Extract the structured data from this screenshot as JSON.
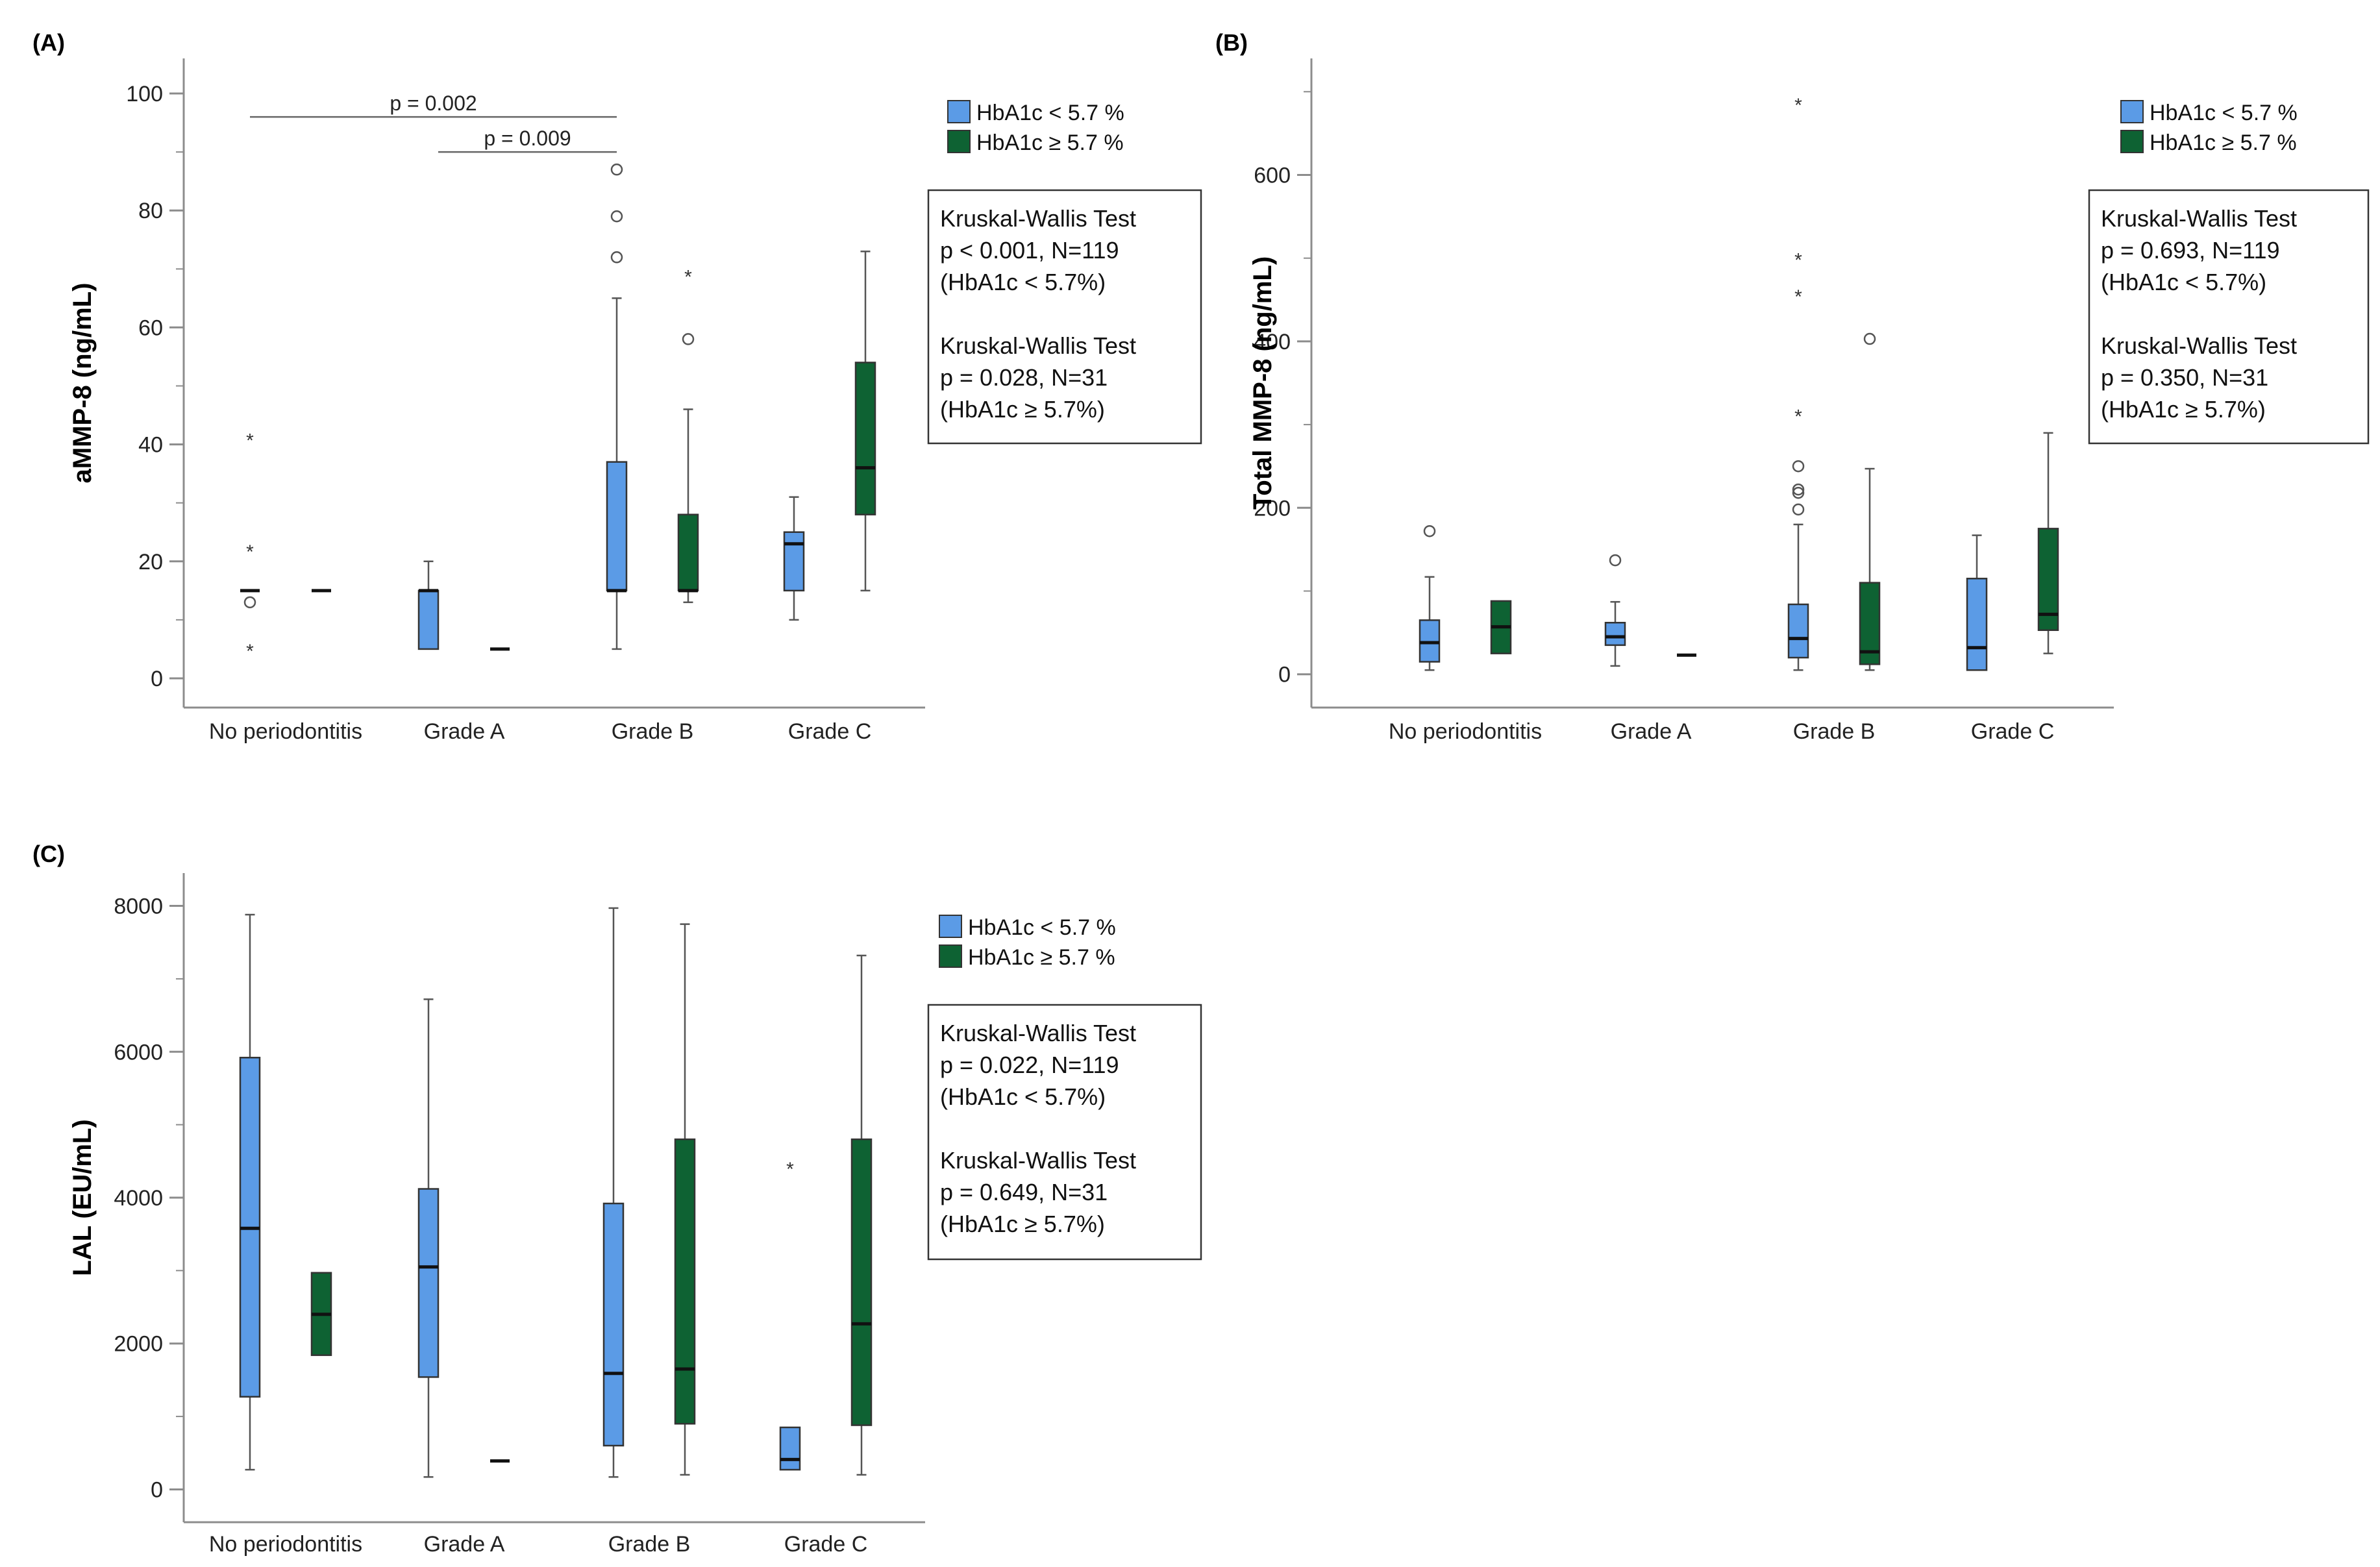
{
  "figure": {
    "background": "#ffffff",
    "axis_color": "#8c8c8c"
  },
  "legend_common": {
    "entries": [
      "HbA1c < 5.7 %",
      "HbA1c ≥ 5.7 %"
    ],
    "colors": [
      "#5b9be6",
      "#0e6233"
    ]
  },
  "chart_data": [
    {
      "panel": "A",
      "panel_label": "(A)",
      "type": "box",
      "ylabel": "aMMP-8 (ng/mL)",
      "categories": [
        "No periodontitis",
        "Grade A",
        "Grade B",
        "Grade C"
      ],
      "ylim": [
        -5,
        106
      ],
      "yticks": [
        0,
        20,
        40,
        60,
        80,
        100
      ],
      "yticks_minor_step": 10,
      "series": [
        {
          "name": "HbA1c < 5.7 %",
          "color": "#5b9be6",
          "boxes": [
            {
              "category": "No periodontitis",
              "min": 15,
              "q1": 15,
              "median": 15,
              "q3": 15,
              "max": 15,
              "extremes": [
                41,
                22,
                5
              ],
              "outliers": [
                13
              ]
            },
            {
              "category": "Grade A",
              "min": 5,
              "q1": 5,
              "median": 15,
              "q3": 15,
              "max": 20,
              "extremes": [],
              "outliers": []
            },
            {
              "category": "Grade B",
              "min": 5,
              "q1": 15,
              "median": 15,
              "q3": 37,
              "max": 65,
              "extremes": [],
              "outliers": [
                87,
                79,
                72
              ]
            },
            {
              "category": "Grade C",
              "min": 10,
              "q1": 15,
              "median": 23,
              "q3": 25,
              "max": 31,
              "extremes": [],
              "outliers": []
            }
          ]
        },
        {
          "name": "HbA1c ≥ 5.7 %",
          "color": "#0e6233",
          "boxes": [
            {
              "category": "No periodontitis",
              "min": 15,
              "q1": 15,
              "median": 15,
              "q3": 15,
              "max": 15,
              "extremes": [],
              "outliers": []
            },
            {
              "category": "Grade A",
              "min": 5,
              "q1": 5,
              "median": 5,
              "q3": 5,
              "max": 5,
              "extremes": [],
              "outliers": []
            },
            {
              "category": "Grade B",
              "min": 13,
              "q1": 15,
              "median": 15,
              "q3": 28,
              "max": 46,
              "extremes": [
                69
              ],
              "outliers": [
                58
              ]
            },
            {
              "category": "Grade C",
              "min": 15,
              "q1": 28,
              "median": 36,
              "q3": 54,
              "max": 73,
              "extremes": [],
              "outliers": []
            }
          ]
        }
      ],
      "brackets": [
        {
          "from": "No periodontitis",
          "to": "Grade B",
          "label": "p = 0.002",
          "y": 96
        },
        {
          "from": "Grade A",
          "to": "Grade B",
          "label": "p = 0.009",
          "y": 90
        }
      ],
      "stats": [
        [
          "Kruskal-Wallis Test",
          "p < 0.001, N=119",
          "(HbA1c < 5.7%)"
        ],
        [
          "Kruskal-Wallis Test",
          "p = 0.028, N=31",
          "(HbA1c ≥ 5.7%)"
        ]
      ]
    },
    {
      "panel": "B",
      "panel_label": "(B)",
      "type": "box",
      "ylabel": "Total MMP-8 (ng/mL)",
      "categories": [
        "No periodontitis",
        "Grade A",
        "Grade B",
        "Grade C"
      ],
      "ylim": [
        -40,
        740
      ],
      "yticks": [
        0,
        200,
        400,
        600
      ],
      "yticks_minor_step": 100,
      "series": [
        {
          "name": "HbA1c < 5.7 %",
          "color": "#5b9be6",
          "boxes": [
            {
              "category": "No periodontitis",
              "min": 5,
              "q1": 15,
              "median": 38,
              "q3": 65,
              "max": 117,
              "extremes": [],
              "outliers": [
                172
              ]
            },
            {
              "category": "Grade A",
              "min": 10,
              "q1": 35,
              "median": 45,
              "q3": 62,
              "max": 87,
              "extremes": [],
              "outliers": [
                137
              ]
            },
            {
              "category": "Grade B",
              "min": 5,
              "q1": 20,
              "median": 43,
              "q3": 84,
              "max": 180,
              "extremes": [
                686,
                500,
                456,
                312
              ],
              "outliers": [
                250,
                222,
                218,
                198
              ]
            },
            {
              "category": "Grade C",
              "min": 5,
              "q1": 5,
              "median": 32,
              "q3": 115,
              "max": 167,
              "extremes": [],
              "outliers": []
            }
          ]
        },
        {
          "name": "HbA1c ≥ 5.7 %",
          "color": "#0e6233",
          "boxes": [
            {
              "category": "No periodontitis",
              "min": 25,
              "q1": 25,
              "median": 57,
              "q3": 88,
              "max": 88,
              "extremes": [],
              "outliers": []
            },
            {
              "category": "Grade A",
              "min": 23,
              "q1": 23,
              "median": 23,
              "q3": 23,
              "max": 23,
              "extremes": [],
              "outliers": []
            },
            {
              "category": "Grade B",
              "min": 5,
              "q1": 12,
              "median": 27,
              "q3": 110,
              "max": 247,
              "extremes": [],
              "outliers": [
                403
              ]
            },
            {
              "category": "Grade C",
              "min": 25,
              "q1": 53,
              "median": 72,
              "q3": 175,
              "max": 290,
              "extremes": [],
              "outliers": []
            }
          ]
        }
      ],
      "brackets": [],
      "stats": [
        [
          "Kruskal-Wallis Test",
          "p = 0.693, N=119",
          "(HbA1c < 5.7%)"
        ],
        [
          "Kruskal-Wallis Test",
          "p = 0.350, N=31",
          "(HbA1c ≥ 5.7%)"
        ]
      ]
    },
    {
      "panel": "C",
      "panel_label": "(C)",
      "type": "box",
      "ylabel": "LAL (EU/mL)",
      "categories": [
        "No periodontitis",
        "Grade A",
        "Grade B",
        "Grade C"
      ],
      "ylim": [
        -450,
        8450
      ],
      "yticks": [
        0,
        2000,
        4000,
        6000,
        8000
      ],
      "yticks_minor_step": 1000,
      "series": [
        {
          "name": "HbA1c < 5.7 %",
          "color": "#5b9be6",
          "boxes": [
            {
              "category": "No periodontitis",
              "min": 270,
              "q1": 1270,
              "median": 3580,
              "q3": 5920,
              "max": 7880,
              "extremes": [],
              "outliers": []
            },
            {
              "category": "Grade A",
              "min": 170,
              "q1": 1540,
              "median": 3050,
              "q3": 4120,
              "max": 6720,
              "extremes": [],
              "outliers": []
            },
            {
              "category": "Grade B",
              "min": 170,
              "q1": 600,
              "median": 1590,
              "q3": 3920,
              "max": 7970,
              "extremes": [],
              "outliers": []
            },
            {
              "category": "Grade C",
              "min": 270,
              "q1": 270,
              "median": 410,
              "q3": 850,
              "max": 850,
              "extremes": [
                4420
              ],
              "outliers": []
            }
          ]
        },
        {
          "name": "HbA1c ≥ 5.7 %",
          "color": "#0e6233",
          "boxes": [
            {
              "category": "No periodontitis",
              "min": 1840,
              "q1": 1840,
              "median": 2400,
              "q3": 2970,
              "max": 2970,
              "extremes": [],
              "outliers": []
            },
            {
              "category": "Grade A",
              "min": 390,
              "q1": 390,
              "median": 390,
              "q3": 390,
              "max": 390,
              "extremes": [],
              "outliers": []
            },
            {
              "category": "Grade B",
              "min": 200,
              "q1": 900,
              "median": 1650,
              "q3": 4800,
              "max": 7750,
              "extremes": [],
              "outliers": []
            },
            {
              "category": "Grade C",
              "min": 200,
              "q1": 880,
              "median": 2270,
              "q3": 4800,
              "max": 7320,
              "extremes": [],
              "outliers": []
            }
          ]
        }
      ],
      "brackets": [],
      "stats": [
        [
          "Kruskal-Wallis Test",
          "p = 0.022, N=119",
          "(HbA1c < 5.7%)"
        ],
        [
          "Kruskal-Wallis Test",
          "p = 0.649, N=31",
          "(HbA1c ≥ 5.7%)"
        ]
      ]
    }
  ]
}
